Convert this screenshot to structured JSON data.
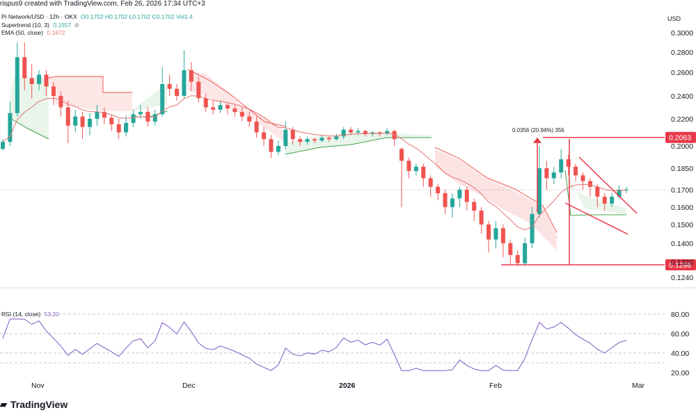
{
  "header": {
    "text": "rispus9 created with TradingView.com, Feb 26, 2026 17:34 UTC+3"
  },
  "legend": {
    "symbol": "Pi Network/USD · 12h · OKX",
    "ohlc": "O0.1702 H0.1702 L0.1702 C0.1702 Vol1.4",
    "supertrend_label": "Supertrend (10, 3)",
    "supertrend_value": "0.1557",
    "ema_label": "EMA (50, close)",
    "ema_value": "0.1672"
  },
  "rsi_legend": {
    "label": "RSI (14, close)",
    "value": "53.20"
  },
  "axis_unit": "USD",
  "brand": "TradingView",
  "colors": {
    "up": "#26a69a",
    "down": "#ef5350",
    "ema": "#e57373",
    "rsi": "#7e57c2",
    "tag": "#e8394a"
  },
  "chart_data": [
    {
      "type": "candlestick",
      "title": "Pi Network/USD · 12h · OKX",
      "ylim": [
        0.12,
        0.31
      ],
      "y_ticks": [
        "0.3000",
        "0.2800",
        "0.2600",
        "0.2400",
        "0.2200",
        "0.2000",
        "0.1850",
        "0.1700",
        "0.1600",
        "0.1500",
        "0.1400",
        "0.1320",
        "0.1240"
      ],
      "x_ticks": [
        "Nov",
        "Dec",
        "2026",
        "Feb",
        "Mar"
      ],
      "price_tags": [
        "0.2063",
        "0.1296"
      ],
      "measure_label": "0.0356 (20.94%) 356",
      "series": [
        {
          "name": "Supertrend (10, 3)",
          "last": 0.1557
        },
        {
          "name": "EMA (50, close)",
          "last": 0.1672
        }
      ],
      "annotations": [
        "resistance 0.2063",
        "support 0.1296",
        "descending channel"
      ]
    },
    {
      "type": "line",
      "title": "RSI (14, close)",
      "ylim": [
        15,
        85
      ],
      "y_ticks": [
        "80.00",
        "60.00",
        "40.00",
        "20.00"
      ],
      "series": [
        {
          "name": "RSI (14, close)",
          "last": 53.2
        }
      ]
    }
  ]
}
